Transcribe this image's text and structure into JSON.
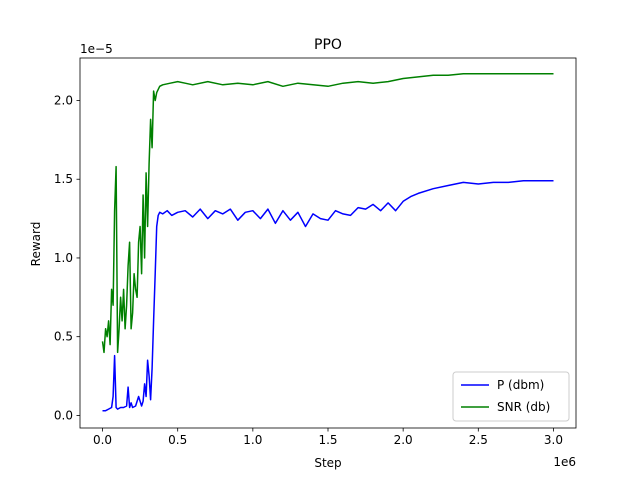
{
  "chart_data": {
    "type": "line",
    "title": "PPO",
    "xlabel": "Step",
    "ylabel": "Reward",
    "x_offset_text": "1e6",
    "y_offset_text": "1e−5",
    "xlim": [
      -0.15,
      3.15
    ],
    "ylim": [
      -0.08,
      2.27
    ],
    "x_ticks": [
      0.0,
      0.5,
      1.0,
      1.5,
      2.0,
      2.5,
      3.0
    ],
    "x_tick_labels": [
      "0.0",
      "0.5",
      "1.0",
      "1.5",
      "2.0",
      "2.5",
      "3.0"
    ],
    "y_ticks": [
      0.0,
      0.5,
      1.0,
      1.5,
      2.0
    ],
    "y_tick_labels": [
      "0.0",
      "0.5",
      "1.0",
      "1.5",
      "2.0"
    ],
    "grid": false,
    "legend_position": "lower-right",
    "series": [
      {
        "name": "P (dbm)",
        "color": "#0000ff",
        "x": [
          0.0,
          0.02,
          0.04,
          0.06,
          0.07,
          0.08,
          0.09,
          0.1,
          0.12,
          0.14,
          0.16,
          0.17,
          0.18,
          0.19,
          0.2,
          0.22,
          0.24,
          0.26,
          0.27,
          0.28,
          0.29,
          0.3,
          0.31,
          0.32,
          0.33,
          0.34,
          0.35,
          0.36,
          0.37,
          0.38,
          0.4,
          0.43,
          0.46,
          0.5,
          0.55,
          0.6,
          0.65,
          0.7,
          0.75,
          0.8,
          0.85,
          0.9,
          0.95,
          1.0,
          1.05,
          1.1,
          1.15,
          1.2,
          1.25,
          1.3,
          1.35,
          1.4,
          1.45,
          1.5,
          1.55,
          1.6,
          1.65,
          1.7,
          1.75,
          1.8,
          1.85,
          1.9,
          1.95,
          2.0,
          2.05,
          2.1,
          2.2,
          2.3,
          2.4,
          2.5,
          2.6,
          2.7,
          2.8,
          2.9,
          3.0
        ],
        "values": [
          0.03,
          0.03,
          0.04,
          0.05,
          0.12,
          0.38,
          0.05,
          0.04,
          0.05,
          0.05,
          0.06,
          0.18,
          0.05,
          0.08,
          0.05,
          0.06,
          0.12,
          0.06,
          0.09,
          0.2,
          0.12,
          0.35,
          0.25,
          0.1,
          0.3,
          0.6,
          0.9,
          1.2,
          1.27,
          1.29,
          1.28,
          1.3,
          1.27,
          1.29,
          1.3,
          1.26,
          1.31,
          1.25,
          1.3,
          1.28,
          1.31,
          1.24,
          1.29,
          1.3,
          1.25,
          1.31,
          1.22,
          1.3,
          1.24,
          1.29,
          1.2,
          1.28,
          1.25,
          1.24,
          1.3,
          1.28,
          1.27,
          1.32,
          1.31,
          1.34,
          1.3,
          1.35,
          1.3,
          1.36,
          1.39,
          1.41,
          1.44,
          1.46,
          1.48,
          1.47,
          1.48,
          1.48,
          1.49,
          1.49,
          1.49
        ]
      },
      {
        "name": "SNR (db)",
        "color": "#008000",
        "x": [
          0.0,
          0.01,
          0.02,
          0.03,
          0.04,
          0.05,
          0.06,
          0.07,
          0.08,
          0.09,
          0.1,
          0.11,
          0.12,
          0.13,
          0.14,
          0.15,
          0.16,
          0.17,
          0.18,
          0.19,
          0.2,
          0.21,
          0.22,
          0.23,
          0.24,
          0.25,
          0.26,
          0.27,
          0.28,
          0.29,
          0.3,
          0.31,
          0.32,
          0.33,
          0.34,
          0.35,
          0.36,
          0.38,
          0.4,
          0.45,
          0.5,
          0.55,
          0.6,
          0.7,
          0.8,
          0.9,
          1.0,
          1.1,
          1.2,
          1.3,
          1.4,
          1.5,
          1.6,
          1.7,
          1.8,
          1.9,
          2.0,
          2.1,
          2.2,
          2.3,
          2.4,
          2.5,
          2.6,
          2.7,
          2.8,
          2.9,
          3.0
        ],
        "values": [
          0.47,
          0.4,
          0.55,
          0.5,
          0.6,
          0.45,
          0.8,
          0.7,
          1.3,
          1.58,
          0.4,
          0.55,
          0.75,
          0.6,
          0.8,
          0.55,
          0.7,
          0.95,
          1.1,
          0.55,
          0.65,
          0.9,
          0.8,
          0.75,
          1.1,
          1.2,
          0.9,
          1.4,
          1.0,
          1.54,
          1.2,
          1.6,
          1.88,
          1.7,
          2.06,
          2.0,
          2.05,
          2.09,
          2.1,
          2.11,
          2.12,
          2.11,
          2.1,
          2.12,
          2.1,
          2.11,
          2.1,
          2.12,
          2.09,
          2.11,
          2.1,
          2.09,
          2.11,
          2.12,
          2.11,
          2.12,
          2.14,
          2.15,
          2.16,
          2.16,
          2.17,
          2.17,
          2.17,
          2.17,
          2.17,
          2.17,
          2.17
        ]
      }
    ]
  }
}
